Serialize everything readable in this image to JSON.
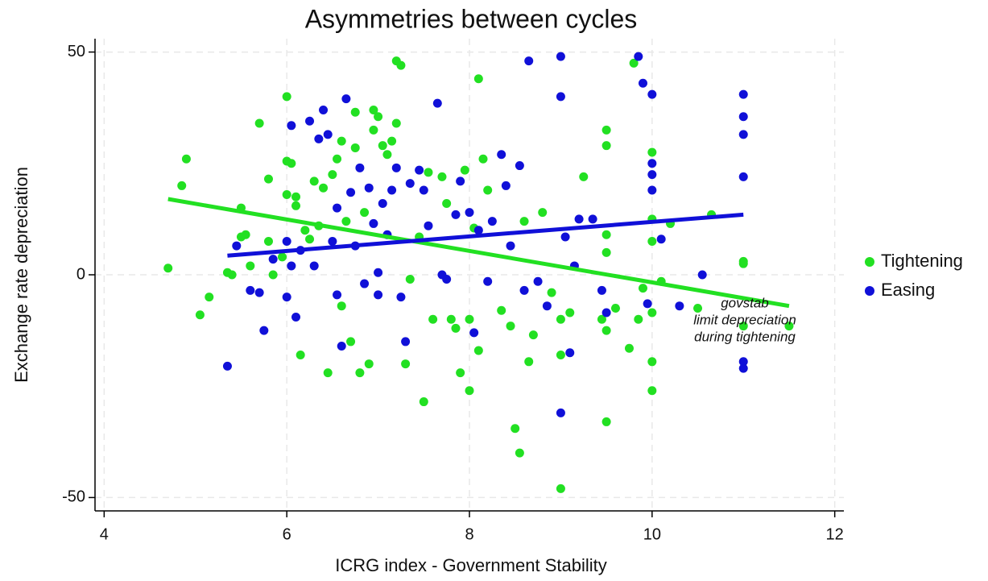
{
  "chart_data": {
    "type": "scatter",
    "title": "Asymmetries between cycles",
    "x_label": "ICRG index - Government Stability",
    "y_label": "Exchange rate depreciation",
    "annotation": [
      "govstab",
      "limit depreciation",
      "during tightening"
    ],
    "xlim": [
      3.9,
      12.1
    ],
    "ylim": [
      -53,
      53
    ],
    "xticks": [
      4,
      6,
      8,
      10,
      12
    ],
    "yticks": [
      -50,
      0,
      50
    ],
    "grid": true,
    "legend": "right",
    "series": [
      {
        "name": "Tightening",
        "color": "#22e022",
        "x": [
          4.7,
          4.85,
          4.9,
          5.05,
          5.15,
          5.35,
          5.4,
          5.5,
          5.5,
          5.55,
          5.6,
          5.7,
          5.8,
          5.8,
          5.85,
          5.95,
          6,
          6,
          6,
          6.05,
          6.1,
          6.1,
          6.15,
          6.2,
          6.25,
          6.3,
          6.35,
          6.4,
          6.45,
          6.5,
          6.55,
          6.6,
          6.6,
          6.65,
          6.7,
          6.75,
          6.75,
          6.8,
          6.85,
          6.9,
          6.95,
          6.95,
          7,
          7.05,
          7.1,
          7.15,
          7.2,
          7.2,
          7.25,
          7.3,
          7.35,
          7.45,
          7.5,
          7.55,
          7.6,
          7.7,
          7.75,
          7.8,
          7.85,
          7.9,
          7.95,
          8,
          8,
          8.05,
          8.1,
          8.1,
          8.15,
          8.2,
          8.35,
          8.45,
          8.5,
          8.55,
          8.6,
          8.65,
          8.7,
          8.8,
          8.9,
          9,
          9,
          9,
          9.1,
          9.25,
          9.45,
          9.5,
          9.5,
          9.5,
          9.5,
          9.5,
          9.5,
          9.6,
          9.75,
          9.8,
          9.85,
          9.9,
          10,
          10,
          10,
          10,
          10,
          10,
          10.1,
          10.2,
          10.5,
          10.65,
          11,
          11,
          11,
          11.5
        ],
        "values": [
          1.5,
          20,
          26,
          -9,
          -5,
          0.5,
          0,
          8.5,
          15,
          9,
          2,
          34,
          21.5,
          7.5,
          0,
          4,
          40,
          25.5,
          18,
          25,
          15.5,
          17.5,
          -18,
          10,
          8,
          21,
          11,
          19.5,
          -22,
          22.5,
          26,
          30,
          -7,
          12,
          -15,
          36.5,
          28.5,
          -22,
          14,
          -20,
          37,
          32.5,
          35.5,
          29,
          27,
          30,
          48,
          34,
          47,
          -20,
          -1,
          8.5,
          -28.5,
          23,
          -10,
          22,
          16,
          -10,
          -12,
          -22,
          23.5,
          -26,
          -10,
          10.5,
          44,
          -17,
          26,
          19,
          -8,
          -11.5,
          -34.5,
          -40,
          12,
          -19.5,
          -13.5,
          14,
          -4,
          -48,
          -10,
          -18,
          -8.5,
          22,
          -10,
          -33,
          32.5,
          29,
          9,
          5,
          -12.5,
          -7.5,
          -16.5,
          47.5,
          -10,
          -3,
          27.5,
          7.5,
          -8.5,
          -19.5,
          -26,
          12.5,
          -1.5,
          11.5,
          -7.5,
          13.5,
          3,
          2.5,
          -11.5,
          -11.5
        ],
        "fit": {
          "x": [
            4.7,
            11.5
          ],
          "y": [
            17,
            -7
          ]
        }
      },
      {
        "name": "Easing",
        "color": "#1010d8",
        "x": [
          5.35,
          5.45,
          5.6,
          5.7,
          5.75,
          5.85,
          6,
          6,
          6.05,
          6.05,
          6.1,
          6.15,
          6.25,
          6.3,
          6.35,
          6.4,
          6.45,
          6.5,
          6.55,
          6.55,
          6.6,
          6.65,
          6.7,
          6.75,
          6.8,
          6.85,
          6.9,
          6.95,
          7,
          7,
          7.05,
          7.1,
          7.15,
          7.2,
          7.25,
          7.3,
          7.35,
          7.45,
          7.5,
          7.55,
          7.65,
          7.7,
          7.75,
          7.85,
          7.9,
          8,
          8.05,
          8.1,
          8.2,
          8.25,
          8.35,
          8.4,
          8.45,
          8.55,
          8.6,
          8.65,
          8.75,
          8.85,
          9,
          9,
          9,
          9.05,
          9.1,
          9.15,
          9.2,
          9.35,
          9.45,
          9.5,
          9.85,
          9.9,
          9.95,
          10,
          10,
          10,
          10,
          10.1,
          10.3,
          10.55,
          11,
          11,
          11,
          11,
          11,
          11
        ],
        "values": [
          -20.5,
          6.5,
          -3.5,
          -4,
          -12.5,
          3.5,
          7.5,
          -5,
          33.5,
          2,
          -9.5,
          5.5,
          34.5,
          2,
          30.5,
          37,
          31.5,
          7.5,
          15,
          -4.5,
          -16,
          39.5,
          18.5,
          6.5,
          24,
          -2,
          19.5,
          11.5,
          0.5,
          -4.5,
          16,
          9,
          19,
          24,
          -5,
          -15,
          20.5,
          23.5,
          19,
          11,
          38.5,
          0,
          -1,
          13.5,
          21,
          14,
          -13,
          10,
          -1.5,
          12,
          27,
          20,
          6.5,
          24.5,
          -3.5,
          48,
          -1.5,
          -7,
          49,
          40,
          -31,
          8.5,
          -17.5,
          2,
          12.5,
          12.5,
          -3.5,
          -8.5,
          49,
          43,
          -6.5,
          40.5,
          25,
          22.5,
          19,
          8,
          -7,
          0,
          40.5,
          35.5,
          31.5,
          22,
          -19.5,
          -21
        ],
        "fit": {
          "x": [
            5.35,
            11
          ],
          "y": [
            4.3,
            13.5
          ]
        }
      }
    ]
  }
}
